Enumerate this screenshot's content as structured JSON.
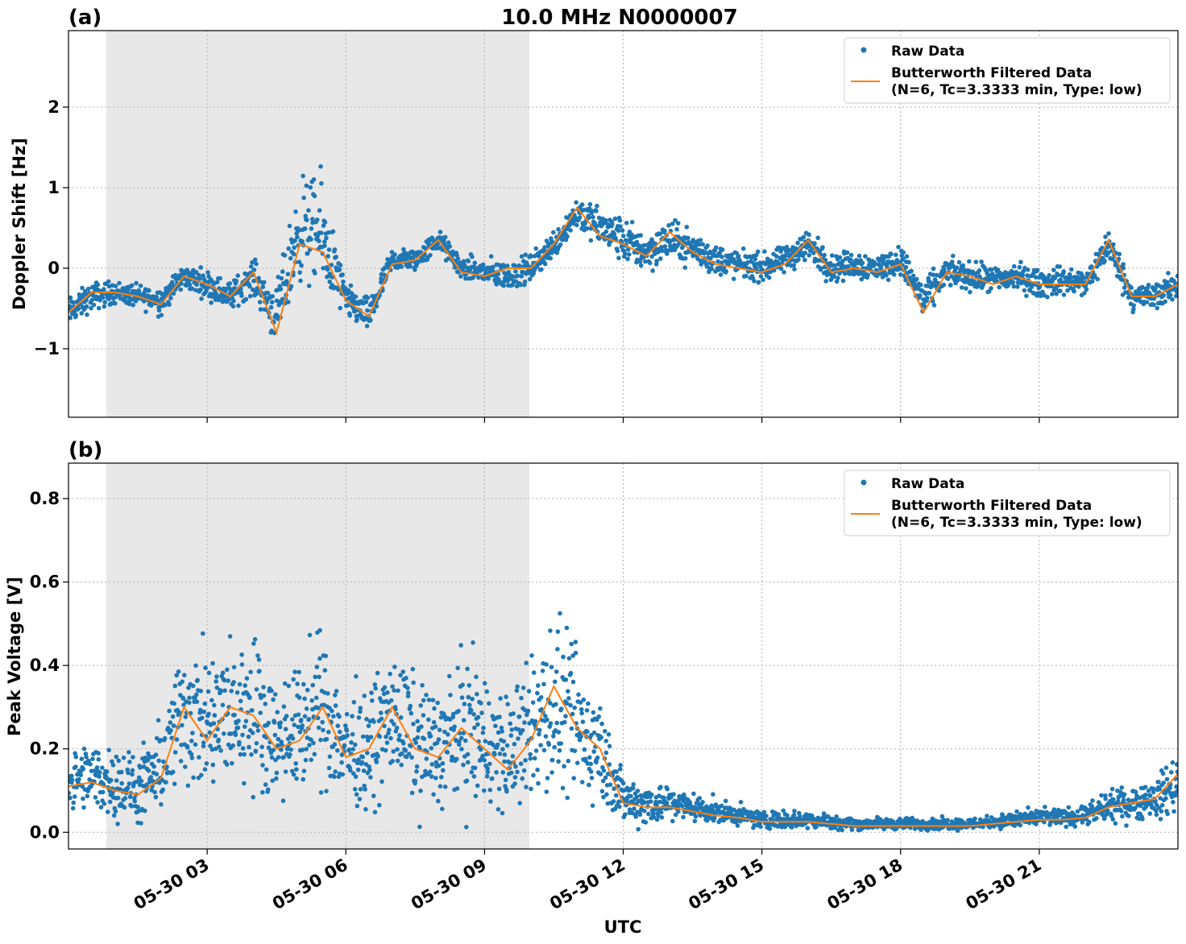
{
  "figure": {
    "title": "10.0 MHz N0000007",
    "xlabel": "UTC"
  },
  "colors": {
    "raw": "#1f77b4",
    "filtered": "#ff7f0e",
    "shade": "#e8e8e8",
    "grid": "#b0b0b0",
    "axis": "#000000"
  },
  "legend": {
    "raw_label": "Raw Data",
    "filtered_line1": "Butterworth Filtered Data",
    "filtered_line2": "(N=6, Tc=3.3333 min, Type: low)"
  },
  "chart_data": [
    {
      "type": "scatter",
      "panel_label": "(a)",
      "ylabel": "Doppler Shift [Hz]",
      "xlim_hours": [
        0.0,
        24.0
      ],
      "ylim": [
        -1.85,
        2.95
      ],
      "yticks": [
        -1,
        0,
        1,
        2
      ],
      "ytick_labels": [
        "−1",
        "0",
        "1",
        "2"
      ],
      "xticks_hours": [
        3,
        6,
        9,
        12,
        15,
        18,
        21
      ],
      "xtick_labels": [
        "05-30 03",
        "05-30 06",
        "05-30 09",
        "05-30 12",
        "05-30 15",
        "05-30 18",
        "05-30 21"
      ],
      "shaded_span_hours": [
        0.82,
        9.97
      ],
      "grid": true,
      "legend_position": "top-right",
      "series": [
        {
          "name": "Raw Data",
          "kind": "points",
          "x": [
            0.0,
            0.5,
            1.0,
            1.5,
            2.0,
            2.5,
            3.0,
            3.5,
            4.0,
            4.5,
            5.0,
            5.5,
            6.0,
            6.5,
            7.0,
            7.5,
            8.0,
            8.5,
            9.0,
            9.5,
            10.0,
            10.5,
            11.0,
            11.5,
            12.0,
            12.5,
            13.0,
            13.5,
            14.0,
            14.5,
            15.0,
            15.5,
            16.0,
            16.5,
            17.0,
            17.5,
            18.0,
            18.5,
            19.0,
            19.5,
            20.0,
            20.5,
            21.0,
            21.5,
            22.0,
            22.5,
            23.0,
            23.5,
            24.0
          ],
          "y": [
            -0.55,
            -0.35,
            -0.3,
            -0.35,
            -0.4,
            -0.1,
            -0.2,
            -0.35,
            -0.1,
            -0.6,
            0.5,
            0.4,
            -0.4,
            -0.6,
            0.1,
            0.1,
            0.35,
            0.0,
            -0.05,
            -0.1,
            0.0,
            0.3,
            0.7,
            0.5,
            0.35,
            0.2,
            0.35,
            0.25,
            0.1,
            0.05,
            0.0,
            0.1,
            0.3,
            0.0,
            0.05,
            0.0,
            0.1,
            -0.4,
            -0.05,
            -0.1,
            -0.15,
            -0.1,
            -0.2,
            -0.15,
            -0.2,
            0.3,
            -0.35,
            -0.35,
            -0.2
          ],
          "spread": [
            0.25,
            0.25,
            0.2,
            0.2,
            0.25,
            0.2,
            0.25,
            0.25,
            0.3,
            0.5,
            0.9,
            1.0,
            0.3,
            0.3,
            0.2,
            0.2,
            0.2,
            0.2,
            0.25,
            0.25,
            0.25,
            0.25,
            0.3,
            0.35,
            0.4,
            0.35,
            0.35,
            0.3,
            0.3,
            0.25,
            0.25,
            0.25,
            0.3,
            0.25,
            0.25,
            0.25,
            0.25,
            0.35,
            0.25,
            0.25,
            0.25,
            0.25,
            0.25,
            0.25,
            0.25,
            0.3,
            0.25,
            0.25,
            0.25
          ]
        },
        {
          "name": "Butterworth Filtered Data",
          "kind": "line",
          "x": [
            0.0,
            0.5,
            1.0,
            1.5,
            2.0,
            2.5,
            3.0,
            3.5,
            4.0,
            4.5,
            5.0,
            5.5,
            6.0,
            6.5,
            7.0,
            7.5,
            8.0,
            8.5,
            9.0,
            9.5,
            10.0,
            10.5,
            11.0,
            11.5,
            12.0,
            12.5,
            13.0,
            13.5,
            14.0,
            14.5,
            15.0,
            15.5,
            16.0,
            16.5,
            17.0,
            17.5,
            18.0,
            18.5,
            19.0,
            19.5,
            20.0,
            20.5,
            21.0,
            21.5,
            22.0,
            22.5,
            23.0,
            23.5,
            24.0
          ],
          "y": [
            -0.55,
            -0.3,
            -0.3,
            -0.35,
            -0.45,
            -0.1,
            -0.2,
            -0.35,
            -0.05,
            -0.8,
            0.3,
            0.2,
            -0.4,
            -0.6,
            0.05,
            0.1,
            0.35,
            -0.05,
            -0.1,
            0.0,
            0.0,
            0.3,
            0.75,
            0.4,
            0.3,
            0.15,
            0.45,
            0.2,
            0.05,
            0.0,
            -0.05,
            0.05,
            0.35,
            -0.05,
            0.0,
            -0.05,
            0.05,
            -0.55,
            -0.05,
            -0.1,
            -0.2,
            -0.1,
            -0.2,
            -0.2,
            -0.2,
            0.35,
            -0.35,
            -0.35,
            -0.2
          ]
        }
      ]
    },
    {
      "type": "scatter",
      "panel_label": "(b)",
      "ylabel": "Peak Voltage [V]",
      "xlim_hours": [
        0.0,
        24.0
      ],
      "ylim": [
        -0.04,
        0.885
      ],
      "yticks": [
        0.0,
        0.2,
        0.4,
        0.6,
        0.8
      ],
      "ytick_labels": [
        "0.0",
        "0.2",
        "0.4",
        "0.6",
        "0.8"
      ],
      "xticks_hours": [
        3,
        6,
        9,
        12,
        15,
        18,
        21
      ],
      "xtick_labels": [
        "05-30 03",
        "05-30 06",
        "05-30 09",
        "05-30 12",
        "05-30 15",
        "05-30 18",
        "05-30 21"
      ],
      "shaded_span_hours": [
        0.82,
        9.97
      ],
      "grid": true,
      "legend_position": "top-right",
      "series": [
        {
          "name": "Raw Data",
          "kind": "points",
          "x": [
            0.0,
            0.5,
            1.0,
            1.5,
            2.0,
            2.5,
            3.0,
            3.5,
            4.0,
            4.5,
            5.0,
            5.5,
            6.0,
            6.5,
            7.0,
            7.5,
            8.0,
            8.5,
            9.0,
            9.5,
            10.0,
            10.5,
            11.0,
            11.5,
            12.0,
            12.5,
            13.0,
            13.5,
            14.0,
            14.5,
            15.0,
            15.5,
            16.0,
            16.5,
            17.0,
            17.5,
            18.0,
            18.5,
            19.0,
            19.5,
            20.0,
            20.5,
            21.0,
            21.5,
            22.0,
            22.5,
            23.0,
            23.5,
            24.0
          ],
          "y": [
            0.12,
            0.13,
            0.12,
            0.1,
            0.15,
            0.3,
            0.25,
            0.28,
            0.3,
            0.22,
            0.25,
            0.3,
            0.2,
            0.2,
            0.28,
            0.22,
            0.2,
            0.25,
            0.22,
            0.18,
            0.25,
            0.3,
            0.25,
            0.2,
            0.08,
            0.07,
            0.07,
            0.06,
            0.05,
            0.04,
            0.03,
            0.03,
            0.03,
            0.025,
            0.02,
            0.02,
            0.02,
            0.02,
            0.02,
            0.02,
            0.025,
            0.03,
            0.035,
            0.035,
            0.04,
            0.06,
            0.07,
            0.08,
            0.12
          ],
          "spread": [
            0.1,
            0.12,
            0.12,
            0.12,
            0.15,
            0.25,
            0.25,
            0.25,
            0.25,
            0.2,
            0.22,
            0.25,
            0.2,
            0.2,
            0.22,
            0.22,
            0.2,
            0.25,
            0.25,
            0.2,
            0.25,
            0.3,
            0.25,
            0.2,
            0.08,
            0.08,
            0.06,
            0.05,
            0.04,
            0.035,
            0.03,
            0.03,
            0.03,
            0.025,
            0.02,
            0.02,
            0.02,
            0.02,
            0.02,
            0.02,
            0.02,
            0.03,
            0.03,
            0.03,
            0.035,
            0.05,
            0.06,
            0.07,
            0.1
          ]
        },
        {
          "name": "Butterworth Filtered Data",
          "kind": "line",
          "x": [
            0.0,
            0.5,
            1.0,
            1.5,
            2.0,
            2.5,
            3.0,
            3.5,
            4.0,
            4.5,
            5.0,
            5.5,
            6.0,
            6.5,
            7.0,
            7.5,
            8.0,
            8.5,
            9.0,
            9.5,
            10.0,
            10.5,
            11.0,
            11.5,
            12.0,
            12.5,
            13.0,
            13.5,
            14.0,
            14.5,
            15.0,
            15.5,
            16.0,
            16.5,
            17.0,
            17.5,
            18.0,
            18.5,
            19.0,
            19.5,
            20.0,
            20.5,
            21.0,
            21.5,
            22.0,
            22.5,
            23.0,
            23.5,
            24.0
          ],
          "y": [
            0.11,
            0.12,
            0.1,
            0.09,
            0.13,
            0.3,
            0.22,
            0.3,
            0.28,
            0.2,
            0.22,
            0.3,
            0.18,
            0.2,
            0.3,
            0.2,
            0.18,
            0.25,
            0.2,
            0.15,
            0.22,
            0.35,
            0.25,
            0.2,
            0.07,
            0.06,
            0.06,
            0.05,
            0.04,
            0.035,
            0.025,
            0.025,
            0.025,
            0.02,
            0.015,
            0.015,
            0.015,
            0.015,
            0.015,
            0.015,
            0.02,
            0.025,
            0.03,
            0.03,
            0.035,
            0.06,
            0.07,
            0.08,
            0.14
          ]
        }
      ]
    }
  ]
}
